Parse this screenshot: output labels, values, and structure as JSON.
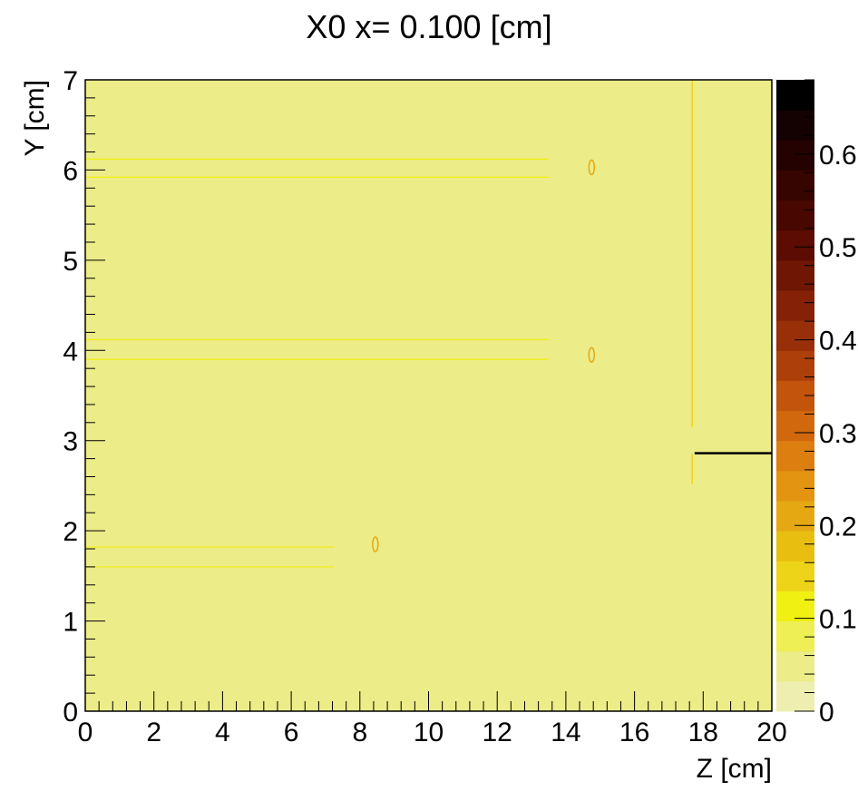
{
  "chart_data": {
    "type": "heatmap",
    "title": "X0 x=  0.100 [cm]",
    "xlabel": "Z [cm]",
    "ylabel": "Y [cm]",
    "xlim": [
      0,
      20
    ],
    "ylim": [
      0,
      7
    ],
    "xticks": [
      "0",
      "2",
      "4",
      "6",
      "8",
      "10",
      "12",
      "14",
      "16",
      "18",
      "20"
    ],
    "yticks": [
      "0",
      "1",
      "2",
      "3",
      "4",
      "5",
      "6",
      "7"
    ],
    "background_value": 0.05,
    "colorbar": {
      "min": 0,
      "max": 0.68,
      "ticks": [
        "0",
        "0.1",
        "0.2",
        "0.3",
        "0.4",
        "0.5",
        "0.6"
      ],
      "colors": [
        "#eeeeb0",
        "#ecec88",
        "#eeee55",
        "#f0f012",
        "#eed418",
        "#e8bf10",
        "#e6a812",
        "#e39411",
        "#dc7e10",
        "#d2680e",
        "#c2540c",
        "#ad400a",
        "#982f08",
        "#842106",
        "#6f1604",
        "#5c0c02",
        "#480701",
        "#360401",
        "#240201",
        "#140101",
        "#000000"
      ]
    },
    "features": [
      {
        "kind": "hline",
        "z": [
          0,
          13.5
        ],
        "y": 6.12,
        "value": 0.12
      },
      {
        "kind": "hline",
        "z": [
          0,
          13.5
        ],
        "y": 5.92,
        "value": 0.12
      },
      {
        "kind": "hline",
        "z": [
          0,
          13.5
        ],
        "y": 4.12,
        "value": 0.12
      },
      {
        "kind": "hline",
        "z": [
          0,
          13.5
        ],
        "y": 3.9,
        "value": 0.12
      },
      {
        "kind": "hline",
        "z": [
          0,
          7.25
        ],
        "y": 1.82,
        "value": 0.12
      },
      {
        "kind": "hline",
        "z": [
          0,
          7.25
        ],
        "y": 1.6,
        "value": 0.12
      },
      {
        "kind": "ring",
        "z": 14.75,
        "y": 6.03,
        "value": 0.22
      },
      {
        "kind": "ring",
        "z": 14.75,
        "y": 3.95,
        "value": 0.22
      },
      {
        "kind": "ring",
        "z": 8.45,
        "y": 1.85,
        "value": 0.22
      },
      {
        "kind": "vline",
        "z": 17.68,
        "y": [
          3.15,
          7
        ],
        "value": 0.15
      },
      {
        "kind": "vline",
        "z": 17.68,
        "y": [
          2.52,
          2.85
        ],
        "value": 0.15
      },
      {
        "kind": "hline",
        "z": [
          17.75,
          20
        ],
        "y": 2.86,
        "value": 0.68
      }
    ]
  }
}
